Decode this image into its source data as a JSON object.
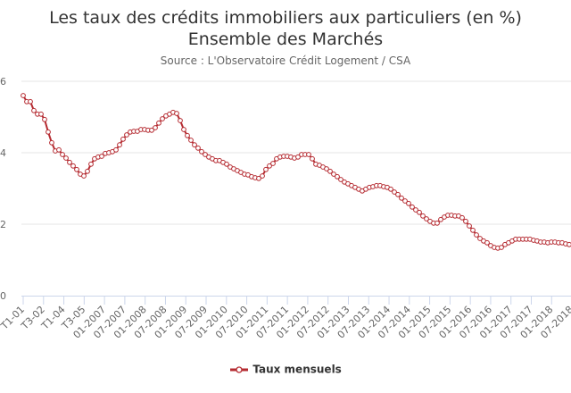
{
  "chart_data": {
    "type": "line",
    "title": "Les taux des crédits immobiliers aux particuliers (en %)",
    "title_line2": "Ensemble des Marchés",
    "subtitle": "Source : L'Observatoire Crédit Logement / CSA",
    "xlabel": "",
    "ylabel": "",
    "ylim": [
      0,
      6
    ],
    "yticks": [
      "0",
      "2",
      "4",
      "6"
    ],
    "xtick_labels": [
      "T1-01",
      "T3-02",
      "T1-04",
      "T3-05",
      "01-2007",
      "07-2007",
      "01-2008",
      "07-2008",
      "01-2009",
      "07-2009",
      "01-2010",
      "07-2010",
      "01-2011",
      "07-2011",
      "01-2012",
      "07-2012",
      "01-2013",
      "07-2013",
      "01-2014",
      "07-2014",
      "01-2015",
      "07-2015",
      "01-2016",
      "07-2016",
      "01-2017",
      "07-2017",
      "01-2018",
      "07-2018"
    ],
    "grid": true,
    "legend_position": "bottom",
    "color": "#b52b31",
    "series": [
      {
        "name": "Taux mensuels",
        "values": [
          5.6,
          5.43,
          5.43,
          5.18,
          5.08,
          5.08,
          4.93,
          4.58,
          4.28,
          4.05,
          4.08,
          3.95,
          3.85,
          3.73,
          3.63,
          3.53,
          3.4,
          3.35,
          3.48,
          3.68,
          3.83,
          3.88,
          3.9,
          3.98,
          4.0,
          4.03,
          4.08,
          4.22,
          4.38,
          4.5,
          4.58,
          4.6,
          4.6,
          4.65,
          4.65,
          4.63,
          4.63,
          4.7,
          4.83,
          4.95,
          5.03,
          5.08,
          5.13,
          5.1,
          4.9,
          4.65,
          4.48,
          4.35,
          4.22,
          4.13,
          4.03,
          3.95,
          3.88,
          3.83,
          3.78,
          3.78,
          3.73,
          3.68,
          3.6,
          3.55,
          3.5,
          3.45,
          3.4,
          3.38,
          3.33,
          3.3,
          3.28,
          3.35,
          3.53,
          3.63,
          3.7,
          3.83,
          3.88,
          3.9,
          3.9,
          3.88,
          3.85,
          3.88,
          3.95,
          3.95,
          3.95,
          3.83,
          3.68,
          3.65,
          3.6,
          3.55,
          3.48,
          3.4,
          3.33,
          3.25,
          3.18,
          3.13,
          3.08,
          3.03,
          2.98,
          2.93,
          2.98,
          3.03,
          3.05,
          3.08,
          3.08,
          3.05,
          3.03,
          2.98,
          2.9,
          2.83,
          2.73,
          2.65,
          2.58,
          2.48,
          2.4,
          2.33,
          2.23,
          2.15,
          2.08,
          2.03,
          2.03,
          2.13,
          2.2,
          2.25,
          2.25,
          2.23,
          2.23,
          2.18,
          2.08,
          1.95,
          1.83,
          1.7,
          1.6,
          1.53,
          1.48,
          1.4,
          1.35,
          1.33,
          1.35,
          1.43,
          1.48,
          1.53,
          1.58,
          1.58,
          1.58,
          1.58,
          1.58,
          1.55,
          1.53,
          1.5,
          1.5,
          1.48,
          1.5,
          1.5,
          1.48,
          1.48,
          1.45,
          1.43
        ]
      }
    ]
  }
}
